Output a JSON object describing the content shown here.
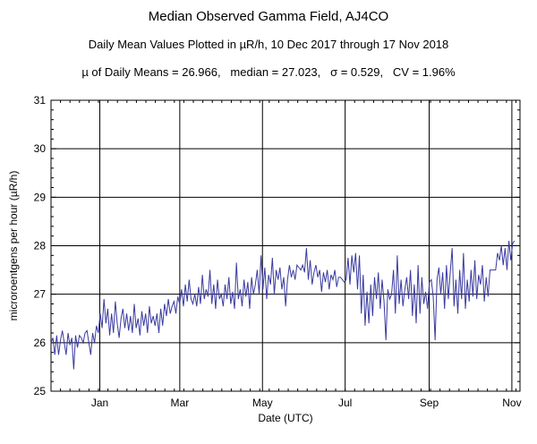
{
  "header": {
    "title": "Median Observed Gamma Field, AJ4CO",
    "subtitle": "Daily Mean Values Plotted in µR/h, 10 Dec 2017 through 17 Nov 2018",
    "stats": "µ of Daily Means = 26.966,   median = 27.023,   σ = 0.529,   CV = 1.96%"
  },
  "chart_data": {
    "type": "line",
    "title": "Median Observed Gamma Field, AJ4CO",
    "xlabel": "Date (UTC)",
    "ylabel": "microroentgens per hour (µR/h)",
    "ylim": [
      25,
      31
    ],
    "xlim": [
      "2017-12-10",
      "2018-11-21"
    ],
    "y_ticks": [
      "25",
      "26",
      "27",
      "28",
      "29",
      "30",
      "31"
    ],
    "x_ticks": [
      {
        "label": "Jan",
        "date": "2018-01-15"
      },
      {
        "label": "Mar",
        "date": "2018-03-15"
      },
      {
        "label": "May",
        "date": "2018-05-15"
      },
      {
        "label": "Jul",
        "date": "2018-07-15"
      },
      {
        "label": "Sep",
        "date": "2018-09-15"
      },
      {
        "label": "Nov",
        "date": "2018-11-15"
      }
    ],
    "grid": true,
    "line_color": "#3a3aa0",
    "series": [
      {
        "start_date": "2017-12-10",
        "values": [
          26.0,
          26.1,
          25.75,
          26.15,
          25.75,
          26.05,
          26.25,
          26.0,
          25.75,
          26.2,
          25.95,
          26.1,
          25.45,
          26.15,
          25.9,
          26.15,
          26.1,
          26.0,
          26.2,
          26.25,
          26.0,
          25.75,
          26.2,
          26.0,
          26.35,
          26.2,
          26.6,
          26.3,
          26.9,
          26.4,
          26.7,
          26.15,
          26.6,
          26.2,
          26.85,
          26.4,
          26.1,
          26.5,
          26.7,
          26.3,
          26.6,
          26.25,
          26.55,
          26.2,
          26.8,
          26.3,
          26.5,
          26.15,
          26.65,
          26.35,
          26.6,
          26.2,
          26.75,
          26.4,
          26.55,
          26.35,
          26.6,
          26.2,
          26.7,
          26.35,
          26.8,
          26.55,
          26.9,
          26.6,
          26.75,
          26.85,
          26.6,
          26.95,
          26.8,
          27.1,
          26.75,
          27.2,
          26.85,
          27.3,
          26.9,
          26.8,
          27.0,
          26.75,
          27.15,
          26.8,
          27.4,
          26.9,
          27.1,
          26.95,
          27.5,
          26.8,
          27.2,
          26.7,
          27.3,
          26.9,
          27.0,
          26.75,
          27.2,
          26.9,
          27.35,
          26.8,
          27.05,
          26.7,
          27.65,
          26.9,
          27.1,
          26.75,
          27.3,
          26.95,
          27.25,
          26.7,
          27.35,
          27.0,
          27.2,
          27.5,
          27.0,
          27.8,
          27.1,
          27.55,
          26.9,
          27.4,
          27.2,
          27.75,
          27.0,
          27.5,
          27.3,
          27.55,
          27.1,
          27.35,
          26.75,
          27.3,
          27.6,
          27.35,
          27.5,
          27.3,
          27.6,
          27.55,
          27.5,
          27.6,
          27.45,
          27.95,
          27.3,
          27.7,
          27.2,
          27.45,
          27.6,
          27.35,
          27.5,
          27.05,
          27.45,
          27.25,
          27.5,
          27.1,
          27.4,
          27.3,
          27.5,
          27.15,
          27.35,
          27.35,
          27.3,
          27.25,
          27.3,
          27.75,
          27.2,
          27.8,
          27.45,
          27.85,
          27.1,
          27.8,
          26.6,
          27.4,
          26.35,
          27.05,
          26.4,
          27.2,
          26.55,
          27.35,
          26.9,
          27.45,
          26.7,
          27.3,
          26.85,
          26.05,
          27.1,
          26.9,
          27.0,
          27.5,
          26.6,
          27.8,
          26.8,
          27.3,
          26.75,
          27.1,
          27.35,
          26.9,
          27.5,
          26.55,
          27.2,
          26.4,
          27.6,
          26.6,
          27.35,
          26.8,
          27.05,
          26.7,
          27.25,
          27.3,
          26.95,
          26.05,
          27.3,
          27.55,
          27.0,
          27.45,
          26.7,
          27.6,
          26.9,
          27.45,
          27.95,
          26.75,
          27.3,
          26.6,
          27.5,
          26.9,
          27.85,
          26.7,
          27.3,
          26.85,
          27.5,
          26.95,
          27.7,
          26.9,
          27.4,
          27.2,
          27.6,
          26.85,
          27.35,
          26.95,
          27.5,
          27.5,
          27.5,
          27.5,
          27.85,
          27.7,
          28.0,
          27.6,
          27.95,
          27.5,
          28.1,
          27.7,
          28.05,
          28.1
        ]
      }
    ]
  }
}
